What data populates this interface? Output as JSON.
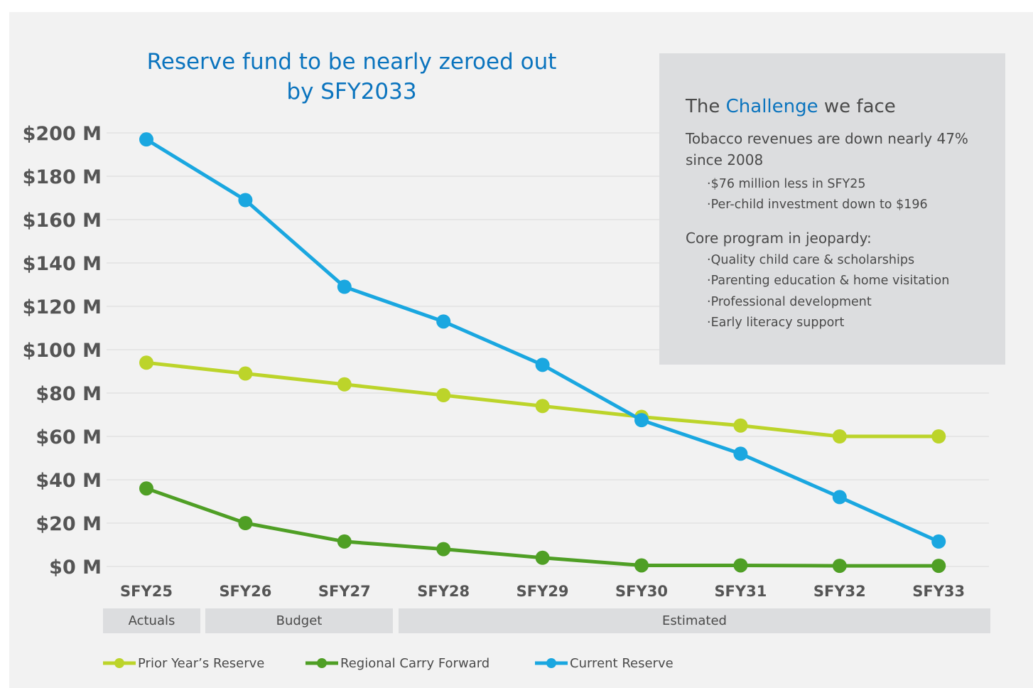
{
  "chart_data": {
    "type": "line",
    "title": "Reserve fund to be nearly zeroed out by SFY2033",
    "title_lines": [
      "Reserve fund to be nearly zeroed out",
      "by SFY2033"
    ],
    "categories": [
      "SFY25",
      "SFY26",
      "SFY27",
      "SFY28",
      "SFY29",
      "SFY30",
      "SFY31",
      "SFY32",
      "SFY33"
    ],
    "ylim": [
      0,
      200
    ],
    "yticks": [
      0,
      20,
      40,
      60,
      80,
      100,
      120,
      140,
      160,
      180,
      200
    ],
    "ytick_labels": [
      "$0 M",
      "$20 M",
      "$40 M",
      "$60 M",
      "$80 M",
      "$100 M",
      "$120 M",
      "$140 M",
      "$160 M",
      "$180 M",
      "$200 M"
    ],
    "grid": true,
    "legend_position": "bottom",
    "series": [
      {
        "name": "Prior Year’s Reserve",
        "color": "#bcd42a",
        "values": [
          94,
          89,
          84,
          79,
          74,
          69,
          65,
          60,
          60
        ]
      },
      {
        "name": "Regional Carry Forward",
        "color": "#4f9f25",
        "values": [
          36,
          20,
          11.5,
          8,
          4,
          0.5,
          0.5,
          0.3,
          0.3
        ]
      },
      {
        "name": "Current Reserve",
        "color": "#1aa7e0",
        "values": [
          197,
          169,
          129,
          113,
          93,
          67.5,
          52,
          32,
          11.5
        ]
      }
    ],
    "periods": [
      {
        "label": "Actuals"
      },
      {
        "label": "Budget"
      },
      {
        "label": "Estimated"
      }
    ]
  },
  "sidebox": {
    "heading_pre": "The ",
    "heading_accent": "Challenge",
    "heading_post": " we face",
    "lead1": "Tobacco revenues are down nearly 47% since 2008",
    "bullets1": [
      "$76 million less in SFY25",
      "Per-child investment down to $196"
    ],
    "lead2": "Core program in jeopardy:",
    "bullets2": [
      "Quality child care & scholarships",
      "Parenting education & home visitation",
      "Professional development",
      "Early literacy support"
    ]
  }
}
